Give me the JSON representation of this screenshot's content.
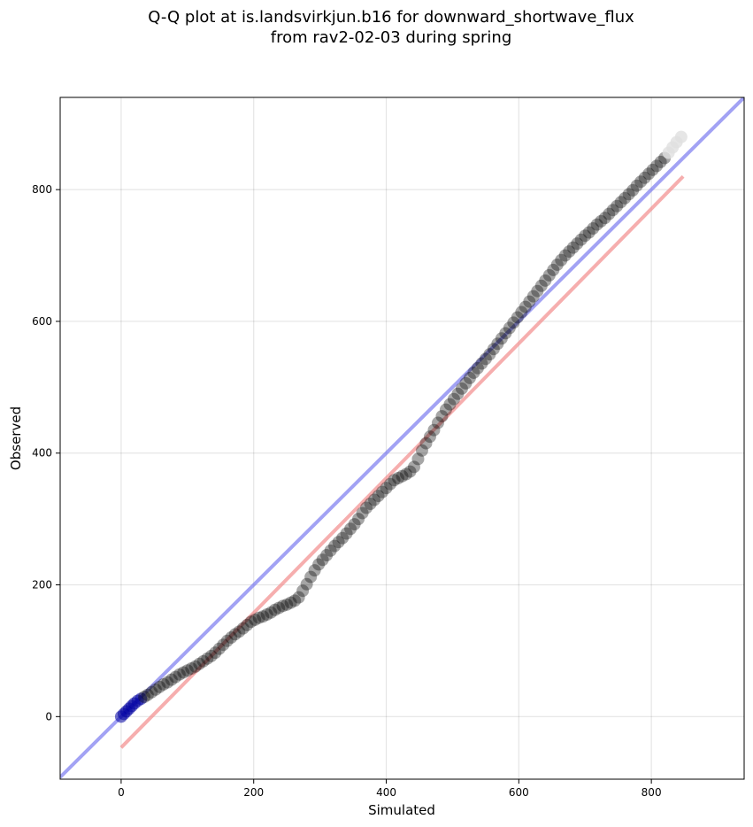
{
  "chart_data": {
    "type": "scatter",
    "title_lines": [
      "Q-Q plot at is.landsvirkjun.b16 for downward_shortwave_flux",
      "from rav2-02-03 during spring"
    ],
    "xlabel": "Simulated",
    "ylabel": "Observed",
    "xlim": [
      -92,
      940
    ],
    "ylim": [
      -95,
      940
    ],
    "xticks": [
      0,
      200,
      400,
      600,
      800
    ],
    "yticks": [
      0,
      200,
      400,
      600,
      800
    ],
    "grid": true,
    "reference_lines": [
      {
        "kind": "one-to-one",
        "color": "#7b7bf0",
        "x": [
          -92,
          940
        ],
        "y": [
          -92,
          940
        ]
      },
      {
        "kind": "fit",
        "color": "#f28c8c",
        "x": [
          0,
          848
        ],
        "y": [
          -47,
          820
        ]
      }
    ],
    "point_color": "#000000",
    "highlight_colors": {
      "start": "#0000a0",
      "end": "#e0e0e0"
    },
    "series": [
      {
        "x": [
          0,
          4,
          8,
          12,
          16,
          20,
          25,
          30,
          35,
          40,
          46,
          52,
          58,
          64,
          70,
          76,
          82,
          88,
          94,
          100,
          106,
          112,
          118,
          124,
          130,
          136,
          142,
          148,
          154,
          160,
          166,
          172,
          178,
          184,
          190,
          196,
          202,
          208,
          214,
          220,
          226,
          232,
          238,
          244,
          250,
          256,
          262,
          268,
          274,
          280,
          286,
          292,
          298,
          304,
          310,
          316,
          322,
          328,
          334,
          340,
          346,
          352,
          358,
          364,
          370,
          376,
          382,
          388,
          394,
          400,
          406,
          412,
          418,
          424,
          430,
          436,
          442,
          448,
          454,
          460,
          466,
          472,
          478,
          484,
          490,
          496,
          502,
          508,
          514,
          520,
          526,
          532,
          538,
          544,
          550,
          556,
          562,
          568,
          574,
          580,
          586,
          592,
          598,
          604,
          610,
          616,
          622,
          628,
          634,
          640,
          646,
          652,
          658,
          664,
          670,
          676,
          682,
          688,
          694,
          700,
          706,
          712,
          718,
          724,
          730,
          736,
          742,
          748,
          754,
          760,
          766,
          772,
          778,
          784,
          790,
          796,
          802,
          808,
          814,
          820,
          826,
          832,
          838,
          845
        ],
        "y": [
          0,
          4,
          8,
          12,
          16,
          20,
          24,
          27,
          30,
          33,
          37,
          41,
          45,
          49,
          52,
          56,
          60,
          64,
          67,
          70,
          73,
          76,
          80,
          84,
          88,
          92,
          97,
          103,
          109,
          115,
          120,
          125,
          129,
          134,
          139,
          144,
          147,
          150,
          152,
          155,
          158,
          162,
          165,
          168,
          170,
          173,
          176,
          181,
          191,
          201,
          212,
          222,
          231,
          238,
          245,
          252,
          259,
          265,
          271,
          278,
          285,
          292,
          300,
          309,
          317,
          323,
          329,
          335,
          341,
          347,
          353,
          359,
          362,
          365,
          368,
          372,
          379,
          391,
          404,
          415,
          425,
          435,
          446,
          456,
          466,
          474,
          482,
          490,
          498,
          506,
          514,
          522,
          529,
          536,
          543,
          550,
          558,
          566,
          574,
          582,
          590,
          598,
          606,
          614,
          622,
          630,
          638,
          646,
          654,
          662,
          670,
          678,
          686,
          693,
          700,
          706,
          712,
          718,
          724,
          730,
          735,
          741,
          747,
          752,
          757,
          763,
          769,
          775,
          781,
          787,
          793,
          799,
          806,
          812,
          818,
          824,
          830,
          836,
          842,
          848,
          856,
          864,
          872,
          880
        ]
      }
    ]
  }
}
